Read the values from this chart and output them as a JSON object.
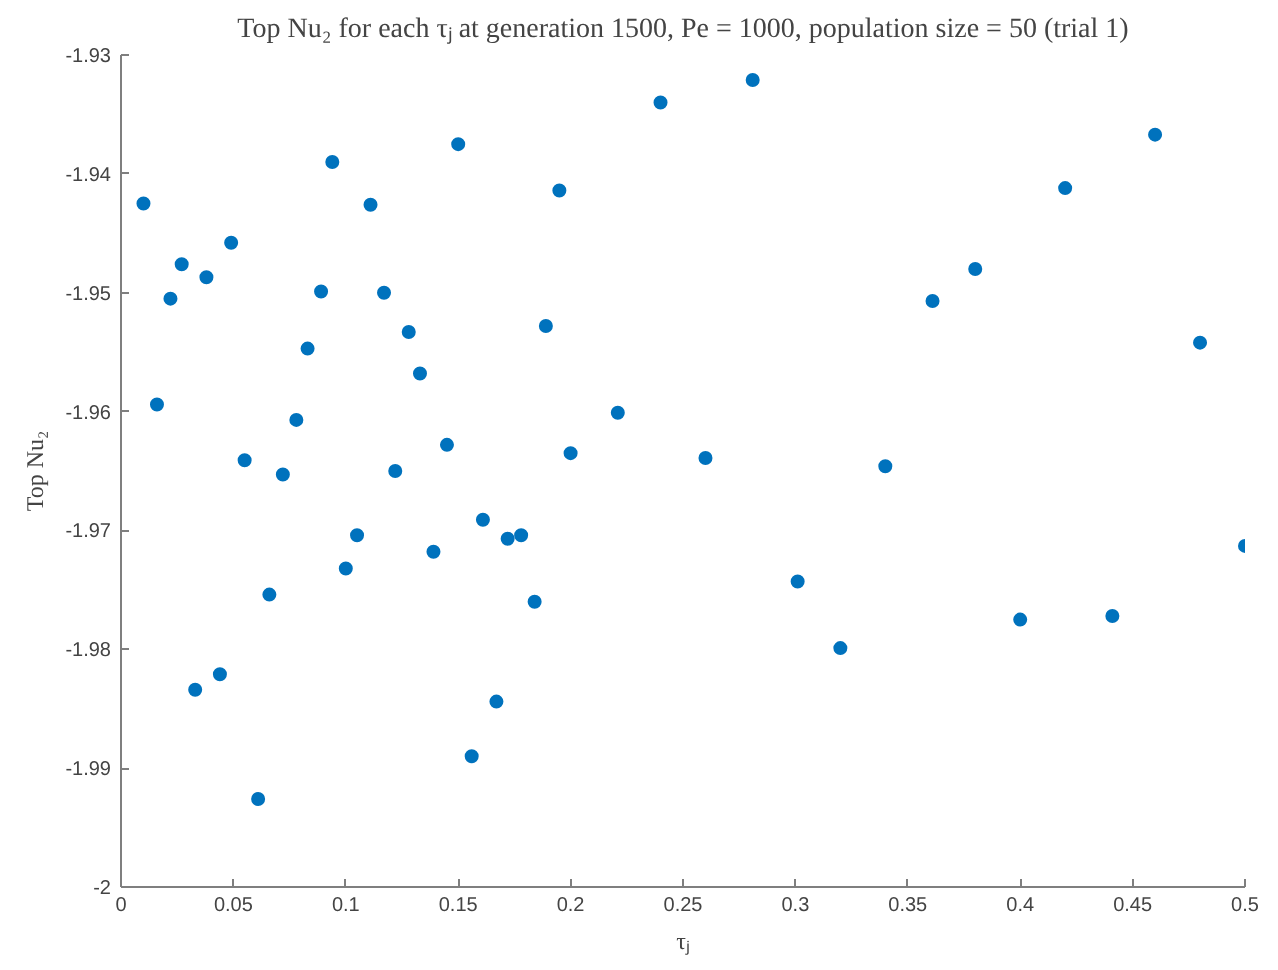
{
  "chart_data": {
    "type": "scatter",
    "title": "Top Nu₂ for each τⱼ at generation 1500, Pe = 1000, population size = 50 (trial 1)",
    "xlabel": "τⱼ",
    "ylabel": "Top Nu₂",
    "x": [
      0.01,
      0.24,
      0.15,
      0.094,
      0.195,
      0.111,
      0.049,
      0.027,
      0.038,
      0.022,
      0.089,
      0.117,
      0.128,
      0.189,
      0.083,
      0.133,
      0.016,
      0.078,
      0.221,
      0.055,
      0.145,
      0.2,
      0.072,
      0.122,
      0.161,
      0.105,
      0.172,
      0.178,
      0.1,
      0.139,
      0.066,
      0.184,
      0.044,
      0.033,
      0.167,
      0.156,
      0.061,
      0.281,
      0.46,
      0.42,
      0.38,
      0.361,
      0.48,
      0.26,
      0.34,
      0.5,
      0.301,
      0.32,
      0.4,
      0.441
    ],
    "values": [
      -1.9425,
      -1.934,
      -1.9375,
      -1.939,
      -1.9414,
      -1.9426,
      -1.9458,
      -1.9476,
      -1.9487,
      -1.9505,
      -1.9499,
      -1.95,
      -1.9533,
      -1.9528,
      -1.9547,
      -1.9568,
      -1.9594,
      -1.9607,
      -1.9601,
      -1.9641,
      -1.9628,
      -1.9635,
      -1.9653,
      -1.965,
      -1.9691,
      -1.9704,
      -1.9707,
      -1.9704,
      -1.9732,
      -1.9718,
      -1.9754,
      -1.976,
      -1.9821,
      -1.9834,
      -1.9844,
      -1.989,
      -1.9926,
      -1.9321,
      -1.9367,
      -1.9412,
      -1.948,
      -1.9507,
      -1.9542,
      -1.9639,
      -1.9646,
      -1.9713,
      -1.9743,
      -1.9799,
      -1.9775,
      -1.9772
    ],
    "color": "#0072bd",
    "marker": "circle",
    "grid": false,
    "legend": false,
    "xlim": [
      0,
      0.5
    ],
    "ylim": [
      -2,
      -1.93
    ],
    "xticks": [
      0,
      0.05,
      0.1,
      0.15,
      0.2,
      0.25,
      0.3,
      0.35,
      0.4,
      0.45,
      0.5
    ],
    "yticks": [
      -2,
      -1.99,
      -1.98,
      -1.97,
      -1.96,
      -1.95,
      -1.94,
      -1.93
    ]
  }
}
